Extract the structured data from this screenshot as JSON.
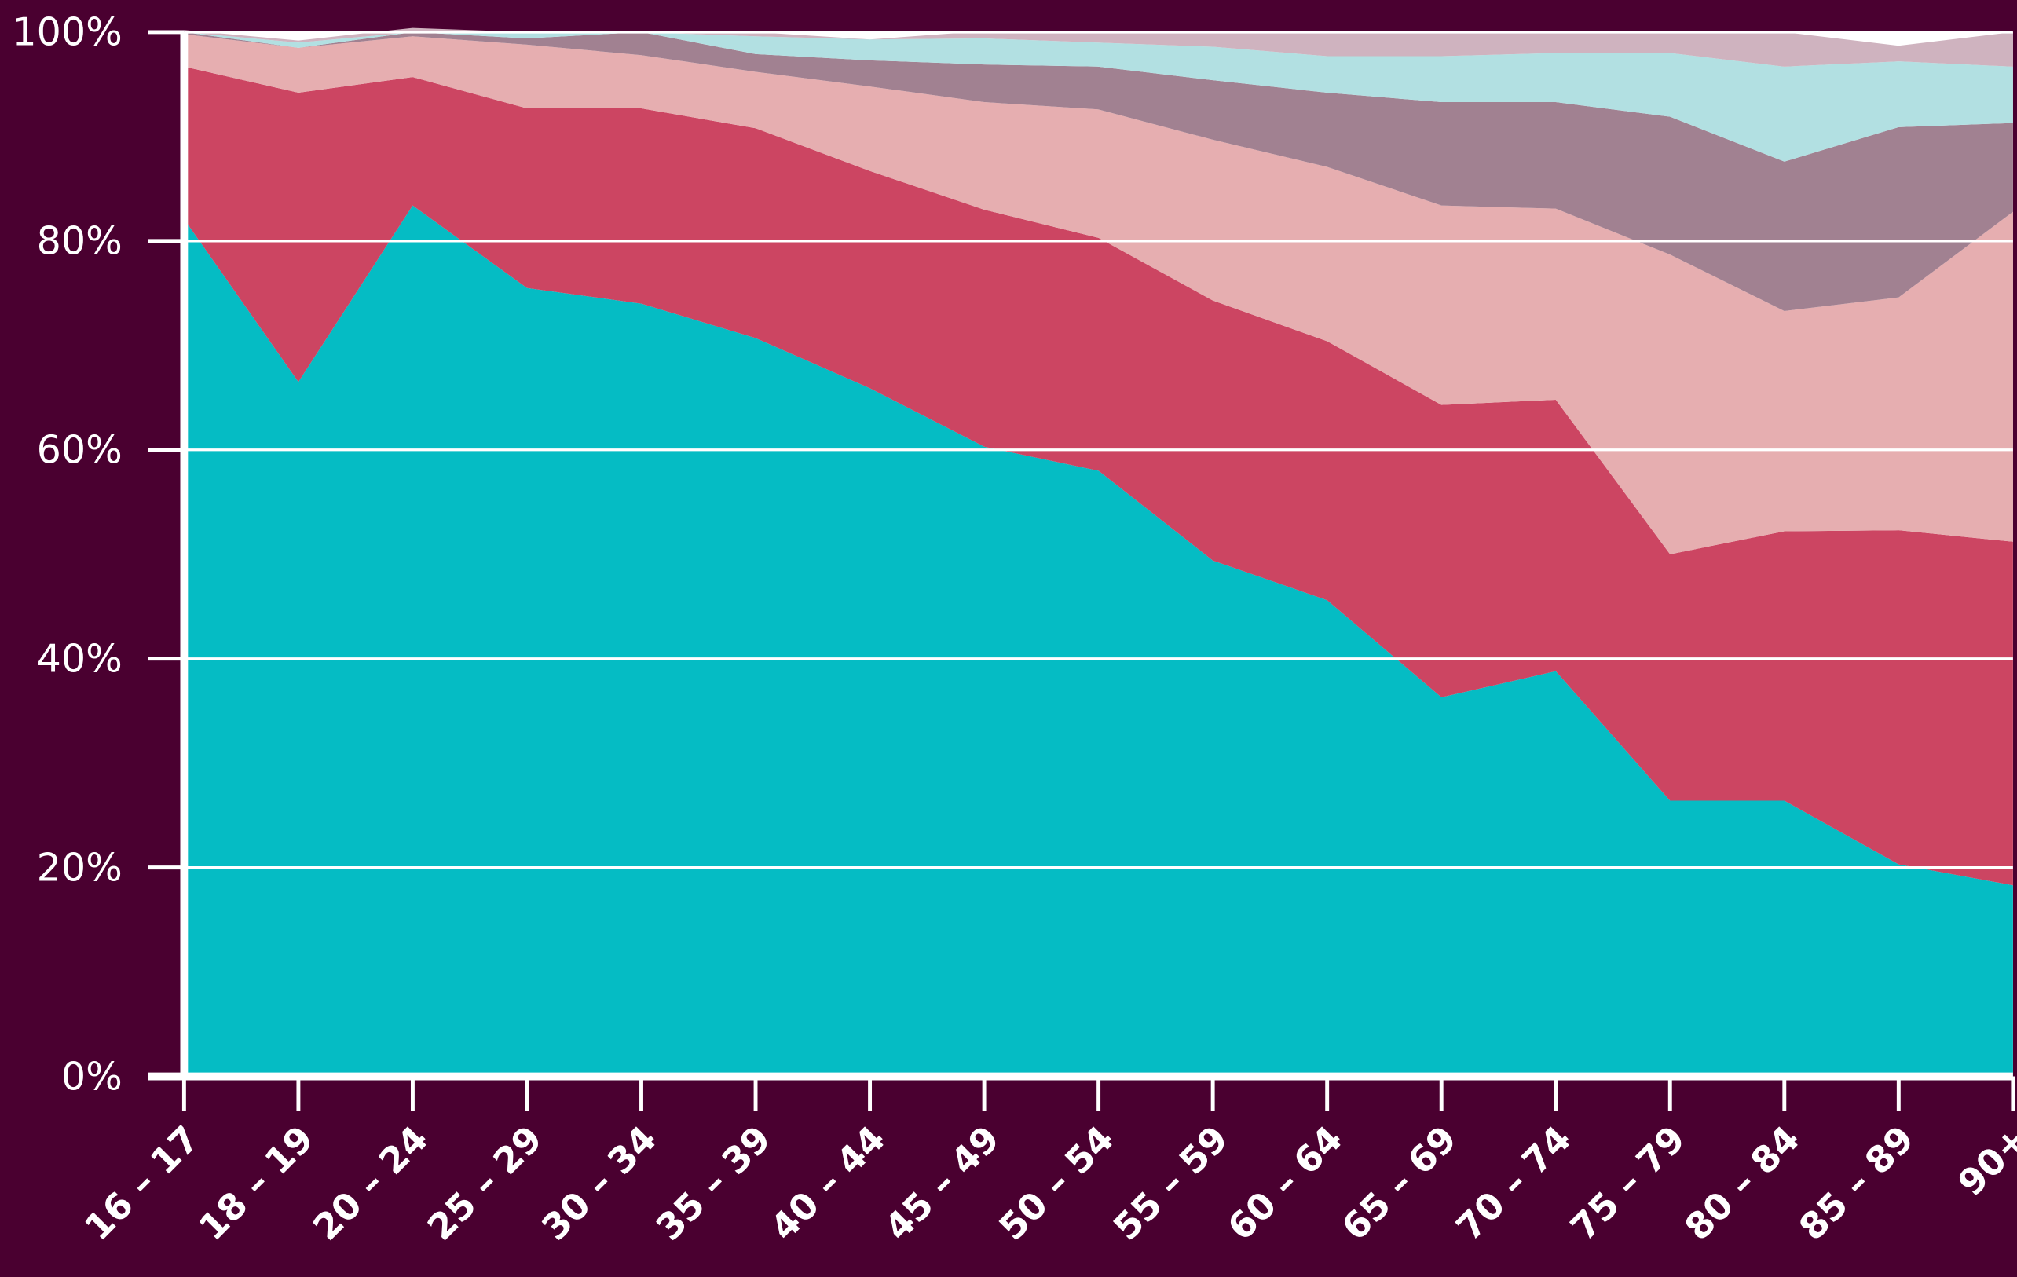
{
  "chart_data": {
    "type": "stacked_area",
    "categories": [
      "16 – 17",
      "18 – 19",
      "20 – 24",
      "25 – 29",
      "30 – 34",
      "35 – 39",
      "40 – 44",
      "45 – 49",
      "50 – 54",
      "55 – 59",
      "60 – 64",
      "65 – 69",
      "70 – 74",
      "75 – 79",
      "80 – 84",
      "85 – 89",
      "90+"
    ],
    "series": [
      {
        "color": "#05bcc4",
        "values": [
          82.1,
          66.5,
          83.4,
          75.5,
          74,
          70.7,
          65.9,
          60.3,
          58,
          49.4,
          45.6,
          36.3,
          38.8,
          26.4,
          26.4,
          20.3,
          18.3
        ]
      },
      {
        "color": "#cc4562",
        "values": [
          14.6,
          27.7,
          12.3,
          17.2,
          18.7,
          20.1,
          20.8,
          22.7,
          22.3,
          24.9,
          24.8,
          28,
          26,
          23.6,
          25.8,
          32,
          32.9
        ]
      },
      {
        "color": "#e6aeb0",
        "values": [
          3.1,
          4.3,
          3.9,
          6.1,
          5.1,
          5.4,
          8.1,
          10.3,
          12.3,
          15.4,
          16.7,
          19.1,
          18.3,
          28.7,
          21.1,
          22.3,
          31.6
        ]
      },
      {
        "color": "#a18191",
        "values": [
          0.2,
          0,
          0.4,
          0.6,
          2.2,
          1.7,
          2.5,
          3.6,
          4.1,
          5.7,
          7.1,
          9.9,
          10.2,
          13.2,
          14.3,
          16.3,
          8.5
        ]
      },
      {
        "color": "#b2e0e2",
        "values": [
          0,
          0.5,
          0,
          0.6,
          0,
          1.7,
          2,
          2.5,
          2.3,
          3.2,
          3.5,
          4.4,
          4.7,
          6.1,
          9.1,
          6.3,
          5.4
        ]
      },
      {
        "color": "#cfb3bf",
        "values": [
          0.2,
          0.2,
          0.4,
          0,
          0,
          0.4,
          0,
          0.7,
          1,
          1.4,
          2.3,
          2.3,
          2,
          2,
          3.3,
          1.5,
          3.3
        ]
      }
    ],
    "ylim": [
      0,
      100
    ],
    "yticks": [
      {
        "value": 0,
        "label": "0%"
      },
      {
        "value": 20,
        "label": "20%"
      },
      {
        "value": 40,
        "label": "40%"
      },
      {
        "value": 60,
        "label": "60%"
      },
      {
        "value": 80,
        "label": "80%"
      },
      {
        "value": 100,
        "label": "100%"
      }
    ],
    "grid": true
  }
}
